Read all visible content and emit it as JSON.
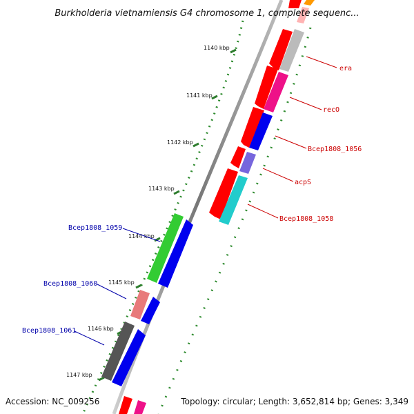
{
  "title": "Burkholderia vietnamiensis G4 chromosome 1, complete sequenc...",
  "footer": {
    "accession": "Accession: NC_009256",
    "summary": "Topology: circular; Length: 3,652,814 bp; Genes: 3,349"
  },
  "ticks": [
    "1140 kbp",
    "1141 kbp",
    "1142 kbp",
    "1143 kbp",
    "1144 kbp",
    "1145 kbp",
    "1146 kbp",
    "1147 kbp"
  ],
  "gene_labels_right": [
    "era",
    "recO",
    "Bcep1808_1056",
    "acpS",
    "Bcep1808_1058"
  ],
  "gene_labels_left": [
    "Bcep1808_1059",
    "Bcep1808_1060",
    "Bcep1808_1061"
  ],
  "colors": {
    "backbone": "#888888",
    "gc_dots": "#2e8b2e",
    "cds": "#ff0000",
    "gene_forward": "#0000ee",
    "label_red": "#cc0000",
    "label_blue": "#0000aa",
    "green_feature": "#33cc33",
    "pink_feature": "#e87a7a",
    "dark_feature": "#555555",
    "magenta_feature": "#ee1188",
    "gray_feature": "#bbbbbb",
    "purple_feature": "#7766dd",
    "cyan_feature": "#22cccc",
    "orange_feature": "#ff9900"
  }
}
